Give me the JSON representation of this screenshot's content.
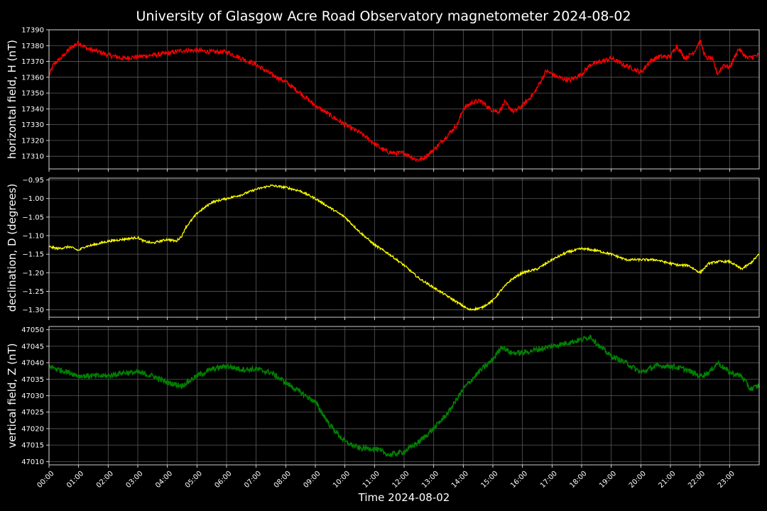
{
  "title": "University of Glasgow Acre Road Observatory magnetometer 2024-08-02",
  "colors": {
    "background": "#000000",
    "axes": "#ffffff",
    "grid": "#5a5a5a",
    "h_line": "#ff0000",
    "d_line": "#ffff00",
    "z_line": "#008000"
  },
  "chart_data": [
    {
      "type": "line",
      "name": "h-panel",
      "ylabel": "horizontal field, H (nT)",
      "ylim": [
        17302,
        17390
      ],
      "yticks": [
        "17310",
        "17320",
        "17330",
        "17340",
        "17350",
        "17360",
        "17370",
        "17380",
        "17390"
      ],
      "ytick_values": [
        17310,
        17320,
        17330,
        17340,
        17350,
        17360,
        17370,
        17380,
        17390
      ],
      "grid": true,
      "color": "#ff0000",
      "noise": 1.5,
      "x": [
        0,
        0.15,
        0.4,
        0.7,
        1.0,
        1.3,
        1.7,
        2.0,
        2.5,
        3.0,
        3.5,
        4.0,
        4.5,
        5.0,
        5.5,
        6.0,
        6.5,
        7.0,
        7.5,
        8.0,
        8.5,
        9.0,
        9.5,
        10.0,
        10.5,
        11.0,
        11.3,
        11.6,
        12.0,
        12.4,
        12.6,
        13.0,
        13.4,
        13.8,
        14.0,
        14.3,
        14.6,
        14.9,
        15.2,
        15.4,
        15.7,
        16.0,
        16.4,
        16.8,
        17.2,
        17.6,
        18.0,
        18.3,
        18.7,
        19.0,
        19.4,
        19.8,
        20.0,
        20.3,
        20.6,
        21.0,
        21.2,
        21.5,
        21.8,
        22.0,
        22.2,
        22.4,
        22.6,
        22.8,
        23.0,
        23.3,
        23.6,
        24.0
      ],
      "values": [
        17361,
        17368,
        17372,
        17378,
        17382,
        17378,
        17376,
        17374,
        17372,
        17373,
        17374,
        17375,
        17377,
        17377,
        17376,
        17376,
        17372,
        17368,
        17362,
        17357,
        17350,
        17342,
        17336,
        17330,
        17325,
        17318,
        17314,
        17312,
        17312,
        17308,
        17308,
        17314,
        17322,
        17330,
        17340,
        17344,
        17345,
        17340,
        17338,
        17344,
        17338,
        17342,
        17350,
        17364,
        17360,
        17358,
        17362,
        17368,
        17370,
        17372,
        17368,
        17365,
        17363,
        17370,
        17373,
        17373,
        17380,
        17372,
        17376,
        17383,
        17372,
        17372,
        17362,
        17368,
        17366,
        17378,
        17372,
        17374
      ]
    },
    {
      "type": "line",
      "name": "d-panel",
      "ylabel": "declination, D (degrees)",
      "ylim": [
        -1.32,
        -0.945
      ],
      "yticks": [
        "−1.30",
        "−1.25",
        "−1.20",
        "−1.15",
        "−1.10",
        "−1.05",
        "−1.00",
        "−0.95"
      ],
      "ytick_values": [
        -1.3,
        -1.25,
        -1.2,
        -1.15,
        -1.1,
        -1.05,
        -1.0,
        -0.95
      ],
      "grid": true,
      "color": "#ffff00",
      "noise": 0.003,
      "x": [
        0,
        0.3,
        0.7,
        1.0,
        1.2,
        1.5,
        2.0,
        2.5,
        3.0,
        3.2,
        3.5,
        4.0,
        4.3,
        4.5,
        4.6,
        5.0,
        5.5,
        6.0,
        6.5,
        7.0,
        7.5,
        8.0,
        8.5,
        9.0,
        9.5,
        10.0,
        10.5,
        11.0,
        11.5,
        12.0,
        12.5,
        13.0,
        13.5,
        13.9,
        14.2,
        14.6,
        15.0,
        15.3,
        15.6,
        16.0,
        16.5,
        17.0,
        17.5,
        18.0,
        18.5,
        19.0,
        19.5,
        20.0,
        20.5,
        21.0,
        21.3,
        21.6,
        22.0,
        22.3,
        22.6,
        23.0,
        23.4,
        23.7,
        24.0
      ],
      "values": [
        -1.13,
        -1.135,
        -1.13,
        -1.14,
        -1.13,
        -1.125,
        -1.115,
        -1.11,
        -1.105,
        -1.115,
        -1.12,
        -1.11,
        -1.115,
        -1.1,
        -1.08,
        -1.04,
        -1.01,
        -1.0,
        -0.99,
        -0.975,
        -0.965,
        -0.97,
        -0.98,
        -1.0,
        -1.025,
        -1.05,
        -1.09,
        -1.125,
        -1.15,
        -1.18,
        -1.215,
        -1.24,
        -1.265,
        -1.285,
        -1.3,
        -1.295,
        -1.275,
        -1.245,
        -1.22,
        -1.2,
        -1.19,
        -1.165,
        -1.145,
        -1.135,
        -1.14,
        -1.15,
        -1.165,
        -1.165,
        -1.165,
        -1.175,
        -1.18,
        -1.18,
        -1.2,
        -1.175,
        -1.17,
        -1.17,
        -1.19,
        -1.175,
        -1.15
      ]
    },
    {
      "type": "line",
      "name": "z-panel",
      "ylabel": "vertical field, Z (nT)",
      "ylim": [
        47009,
        47051
      ],
      "yticks": [
        "47010",
        "47015",
        "47020",
        "47025",
        "47030",
        "47035",
        "47040",
        "47045",
        "47050"
      ],
      "ytick_values": [
        47010,
        47015,
        47020,
        47025,
        47030,
        47035,
        47040,
        47045,
        47050
      ],
      "grid": true,
      "color": "#008000",
      "noise": 0.8,
      "x": [
        0,
        0.3,
        0.7,
        1.0,
        1.5,
        2.0,
        2.5,
        3.0,
        3.5,
        4.0,
        4.5,
        5.0,
        5.5,
        6.0,
        6.5,
        7.0,
        7.5,
        8.0,
        8.5,
        9.0,
        9.5,
        10.0,
        10.5,
        11.0,
        11.5,
        12.0,
        12.5,
        13.0,
        13.5,
        14.0,
        14.5,
        15.0,
        15.3,
        15.6,
        16.0,
        16.5,
        17.0,
        17.5,
        18.0,
        18.3,
        18.6,
        19.0,
        19.5,
        20.0,
        20.5,
        21.0,
        21.5,
        22.0,
        22.3,
        22.6,
        23.0,
        23.4,
        23.7,
        24.0
      ],
      "values": [
        47039,
        47038,
        47037,
        47036,
        47036,
        47036,
        47037,
        47037,
        47036,
        47034,
        47033,
        47036,
        47038,
        47039,
        47038,
        47038,
        47037,
        47034,
        47031,
        47028,
        47021,
        47016,
        47014,
        47014,
        47012,
        47013,
        47016,
        47020,
        47025,
        47032,
        47037,
        47041,
        47045,
        47043,
        47043,
        47044,
        47045,
        47046,
        47047,
        47048,
        47045,
        47042,
        47040,
        47037,
        47039,
        47039,
        47038,
        47036,
        47037,
        47040,
        47037,
        47036,
        47032,
        47033
      ]
    }
  ],
  "xaxis": {
    "label": "Time 2024-08-02",
    "range": [
      0,
      24
    ],
    "ticks": [
      "00:00",
      "01:00",
      "02:00",
      "03:00",
      "04:00",
      "05:00",
      "06:00",
      "07:00",
      "08:00",
      "09:00",
      "10:00",
      "11:00",
      "12:00",
      "13:00",
      "14:00",
      "15:00",
      "16:00",
      "17:00",
      "18:00",
      "19:00",
      "20:00",
      "21:00",
      "22:00",
      "23:00"
    ]
  }
}
